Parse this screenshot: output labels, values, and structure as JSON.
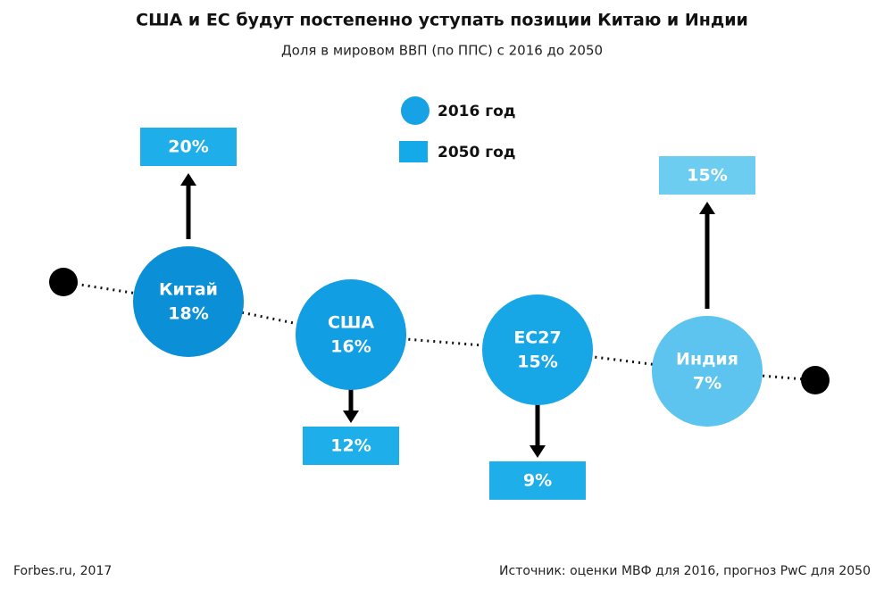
{
  "chart_data": {
    "type": "bubble-change",
    "title": "США и ЕС будут постепенно уступать позиции Китаю и Индии",
    "subtitle": "Доля в мировом ВВП (по ППС) с 2016 до 2050",
    "categories": [
      "Китай",
      "США",
      "ЕС27",
      "Индия"
    ],
    "series": [
      {
        "name": "2016 год",
        "color": "#16a2e4",
        "colors": [
          "#0b8fd6",
          "#129ee3",
          "#18a7e6",
          "#5cc4ee"
        ],
        "values": [
          18,
          16,
          15,
          7
        ],
        "value_labels": [
          "18%",
          "16%",
          "15%",
          "7%"
        ]
      },
      {
        "name": "2050 год",
        "color": "#14a9e8",
        "colors": [
          "#1eaee9",
          "#1eaee9",
          "#1eaee9",
          "#6dcdf1"
        ],
        "values": [
          20,
          12,
          9,
          15
        ],
        "value_labels": [
          "20%",
          "12%",
          "9%",
          "15%"
        ]
      }
    ],
    "credit": "Forbes.ru, 2017",
    "source": "Источник: оценки МВФ для 2016, прогноз PwC для 2050"
  }
}
